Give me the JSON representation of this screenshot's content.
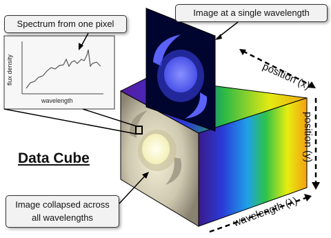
{
  "callouts": {
    "image_single_wavelength": "Image at a single wavelength",
    "spectrum_one_pixel": "Spectrum from one pixel",
    "image_collapsed_line1": "Image collapsed across",
    "image_collapsed_line2": "all wavelengths"
  },
  "title": "Data Cube",
  "axes": {
    "x": "position (x)",
    "y": "position (y)",
    "lambda": "wavelength (λ)"
  },
  "spectrum_plot": {
    "xlabel": "wavelength",
    "ylabel": "flux density"
  },
  "colors": {
    "spectrum_gradient": [
      "#3b1a8a",
      "#2a3bd8",
      "#1fb0e8",
      "#2ec24a",
      "#e6ee10",
      "#f4a010"
    ],
    "slice_bg": "#000530",
    "galaxy_blue": "#6a72ff",
    "collapsed_face": "#cfc8b0",
    "collapsed_core": "#fdfbd0"
  }
}
